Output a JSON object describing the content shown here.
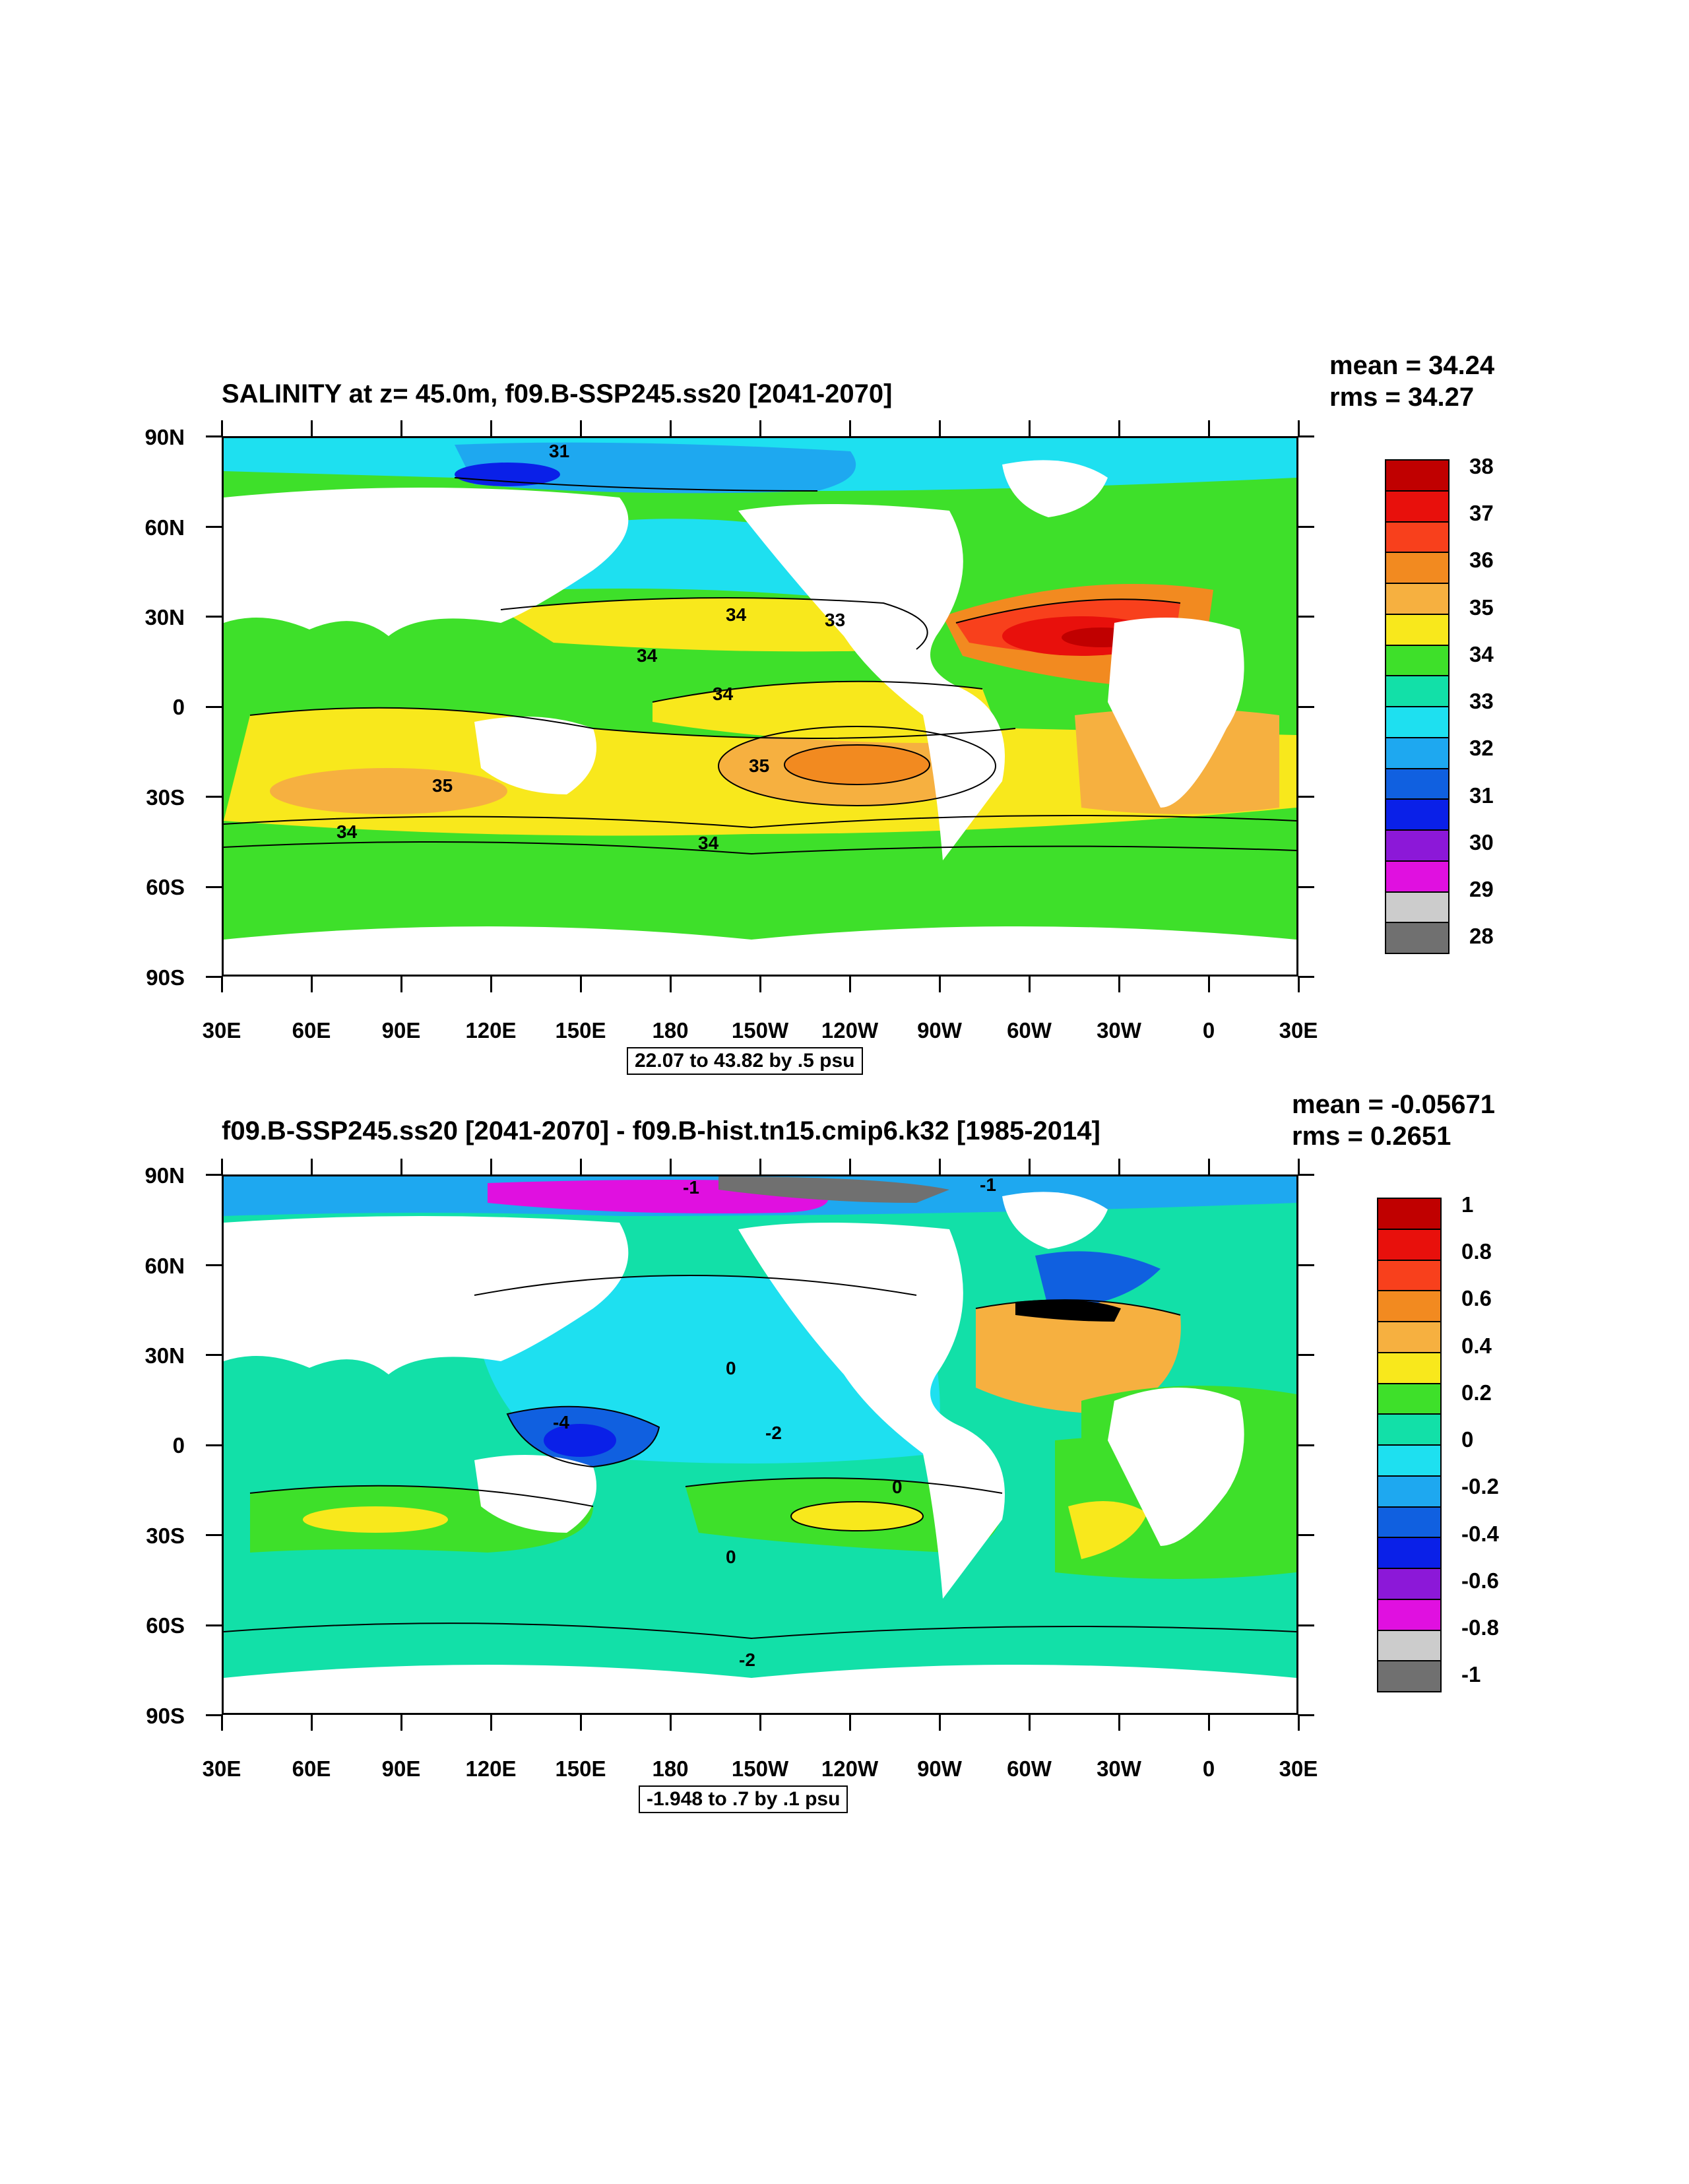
{
  "panel1": {
    "title": "SALINITY at z=  45.0m, f09.B-SSP245.ss20 [2041-2070]",
    "mean_text": "mean = 34.24",
    "rms_text": "rms = 34.27",
    "range_text": "22.07 to 43.82 by .5 psu",
    "colorbar": {
      "labels": [
        "38",
        "37",
        "36",
        "35",
        "34",
        "33",
        "32",
        "31",
        "30",
        "29",
        "28"
      ],
      "colors": [
        "#c00000",
        "#e8100c",
        "#f8401c",
        "#f28a20",
        "#f6b040",
        "#f8e81c",
        "#3ee02a",
        "#12e0a8",
        "#1ee0f0",
        "#1ea8f0",
        "#1060e0",
        "#0a20e8",
        "#8c18d8",
        "#e010e0",
        "#cccccc",
        "#707070"
      ]
    },
    "contour_labels": [
      "31",
      "34",
      "33",
      "34",
      "34",
      "35",
      "35",
      "34",
      "34"
    ]
  },
  "panel2": {
    "title": "f09.B-SSP245.ss20 [2041-2070] - f09.B-hist.tn15.cmip6.k32 [1985-2014]",
    "mean_text": "mean = -0.05671",
    "rms_text": "rms = 0.2651",
    "range_text": "-1.948 to .7 by .1 psu",
    "colorbar": {
      "labels": [
        "1",
        "0.8",
        "0.6",
        "0.4",
        "0.2",
        "0",
        "-0.2",
        "-0.4",
        "-0.6",
        "-0.8",
        "-1"
      ],
      "colors": [
        "#c00000",
        "#e8100c",
        "#f8401c",
        "#f28a20",
        "#f6b040",
        "#f8e81c",
        "#3ee02a",
        "#12e0a8",
        "#1ee0f0",
        "#1ea8f0",
        "#1060e0",
        "#0a20e8",
        "#8c18d8",
        "#e010e0",
        "#cccccc",
        "#707070"
      ]
    },
    "contour_labels": [
      "-4",
      "-2",
      "0",
      "0",
      "0",
      "-2",
      "-1",
      "-1"
    ]
  },
  "axes": {
    "y_ticks": [
      "90N",
      "60N",
      "30N",
      "0",
      "30S",
      "60S",
      "90S"
    ],
    "x_ticks": [
      "30E",
      "60E",
      "90E",
      "120E",
      "150E",
      "180",
      "150W",
      "120W",
      "90W",
      "60W",
      "30W",
      "0",
      "30E"
    ]
  }
}
